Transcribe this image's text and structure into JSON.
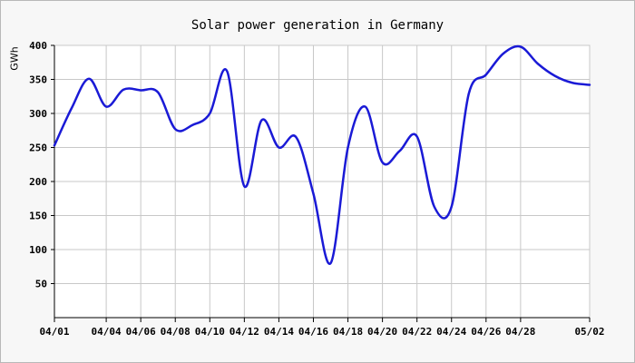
{
  "chart_data": {
    "type": "line",
    "title": "Solar power generation in Germany",
    "xlabel": "",
    "ylabel": "GWh",
    "ylim": [
      0,
      400
    ],
    "xlim": [
      "04/01",
      "05/02"
    ],
    "y_ticks": [
      50,
      100,
      150,
      200,
      250,
      300,
      350,
      400
    ],
    "x_tick_labels": [
      "04/01",
      "04/04",
      "04/06",
      "04/08",
      "04/10",
      "04/12",
      "04/14",
      "04/16",
      "04/18",
      "04/20",
      "04/22",
      "04/24",
      "04/26",
      "04/28",
      "05/02"
    ],
    "grid": true,
    "line_color": "#1a1ad6",
    "series": [
      {
        "x": [
          "04/01",
          "04/02",
          "04/03",
          "04/04",
          "04/05",
          "04/06",
          "04/07",
          "04/08",
          "04/09",
          "04/10",
          "04/11",
          "04/12",
          "04/13",
          "04/14",
          "04/15",
          "04/16",
          "04/17",
          "04/18",
          "04/19",
          "04/20",
          "04/21",
          "04/22",
          "04/23",
          "04/24",
          "04/25",
          "04/26",
          "04/27",
          "04/28",
          "04/29",
          "04/30",
          "05/01",
          "05/02"
        ],
        "values": [
          253,
          308,
          351,
          310,
          335,
          334,
          331,
          277,
          283,
          300,
          362,
          193,
          290,
          250,
          265,
          182,
          80,
          250,
          310,
          228,
          245,
          266,
          163,
          163,
          329,
          357,
          388,
          398,
          373,
          355,
          345,
          342
        ]
      }
    ]
  }
}
